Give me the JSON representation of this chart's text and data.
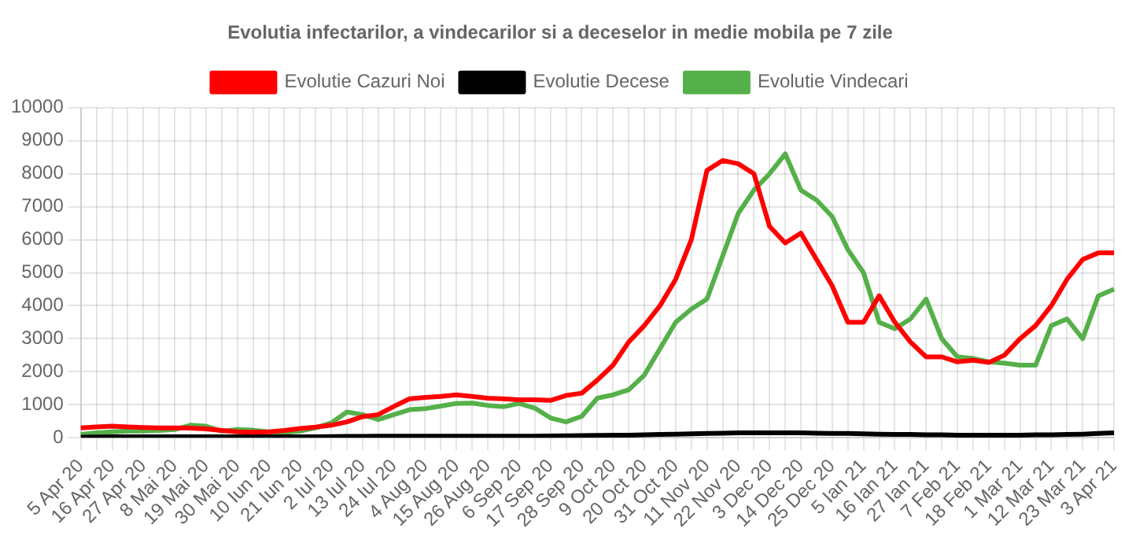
{
  "chart_data": {
    "type": "line",
    "title": "Evolutia infectarilor, a vindecarilor si a deceselor in medie mobila pe 7 zile",
    "categories": [
      "5 Apr 20",
      null,
      "16 Apr 20",
      null,
      "27 Apr 20",
      null,
      "8 Mai 20",
      null,
      "19 Mai 20",
      null,
      "30 Mai 20",
      null,
      "10 Iun 20",
      null,
      "21 Iun 20",
      null,
      "2 Iul 20",
      null,
      "13 Iul 20",
      null,
      "24 Iul 20",
      null,
      "4 Aug 20",
      null,
      "15 Aug 20",
      null,
      "26 Aug 20",
      null,
      "6 Sep 20",
      null,
      "17 Sep 20",
      null,
      "28 Sep 20",
      null,
      "9 Oct 20",
      null,
      "20 Oct 20",
      null,
      "31 Oct 20",
      null,
      "11 Nov 20",
      null,
      "22 Nov 20",
      null,
      "3 Dec 20",
      null,
      "14 Dec 20",
      null,
      "25 Dec 20",
      null,
      "5 Ian 21",
      null,
      "16 Ian 21",
      null,
      "27 Ian 21",
      null,
      "7 Feb 21",
      null,
      "18 Feb 21",
      null,
      "1 Mar 21",
      null,
      "12 Mar 21",
      null,
      "23 Mar 21",
      null,
      "3 Apr 21"
    ],
    "series": [
      {
        "name": "Evolutie Cazuri Noi",
        "color": "#ff0000",
        "values": [
          300,
          330,
          350,
          330,
          310,
          300,
          300,
          290,
          270,
          220,
          180,
          170,
          180,
          220,
          280,
          320,
          380,
          480,
          640,
          700,
          950,
          1180,
          1220,
          1250,
          1300,
          1250,
          1200,
          1180,
          1150,
          1150,
          1130,
          1280,
          1350,
          1750,
          2200,
          2900,
          3400,
          4000,
          4800,
          6000,
          8100,
          8400,
          8300,
          8000,
          6400,
          5900,
          6200,
          5400,
          4600,
          3500,
          3500,
          4300,
          3500,
          2900,
          2450,
          2450,
          2300,
          2350,
          2280,
          2500,
          3000,
          3400,
          4000,
          4800,
          5400,
          5600,
          5600
        ]
      },
      {
        "name": "Evolutie Decese",
        "color": "#000000",
        "values": [
          20,
          25,
          30,
          30,
          30,
          30,
          30,
          30,
          30,
          30,
          30,
          30,
          30,
          30,
          30,
          30,
          35,
          40,
          40,
          45,
          45,
          50,
          50,
          50,
          50,
          50,
          50,
          50,
          50,
          50,
          55,
          60,
          65,
          70,
          75,
          80,
          90,
          100,
          110,
          120,
          130,
          140,
          150,
          150,
          150,
          150,
          150,
          140,
          130,
          130,
          120,
          110,
          100,
          100,
          90,
          90,
          80,
          80,
          80,
          80,
          80,
          90,
          90,
          100,
          110,
          130,
          150
        ]
      },
      {
        "name": "Evolutie Vindecari",
        "color": "#55b04a",
        "values": [
          100,
          150,
          180,
          200,
          200,
          220,
          250,
          380,
          350,
          200,
          250,
          230,
          180,
          160,
          200,
          300,
          450,
          780,
          700,
          550,
          700,
          850,
          880,
          960,
          1040,
          1050,
          980,
          940,
          1040,
          900,
          600,
          480,
          650,
          1200,
          1300,
          1450,
          1900,
          2700,
          3500,
          3900,
          4200,
          5500,
          6800,
          7500,
          8000,
          8600,
          7500,
          7200,
          6700,
          5700,
          5000,
          3500,
          3300,
          3600,
          4200,
          3000,
          2450,
          2400,
          2300,
          2260,
          2200,
          2200,
          3400,
          3600,
          3000,
          4300,
          4500
        ]
      }
    ],
    "ylim": [
      0,
      10000
    ],
    "yticks": [
      0,
      1000,
      2000,
      3000,
      4000,
      5000,
      6000,
      7000,
      8000,
      9000,
      10000
    ],
    "grid": true,
    "legend": "top",
    "marker": "none",
    "line_style": "solid"
  }
}
